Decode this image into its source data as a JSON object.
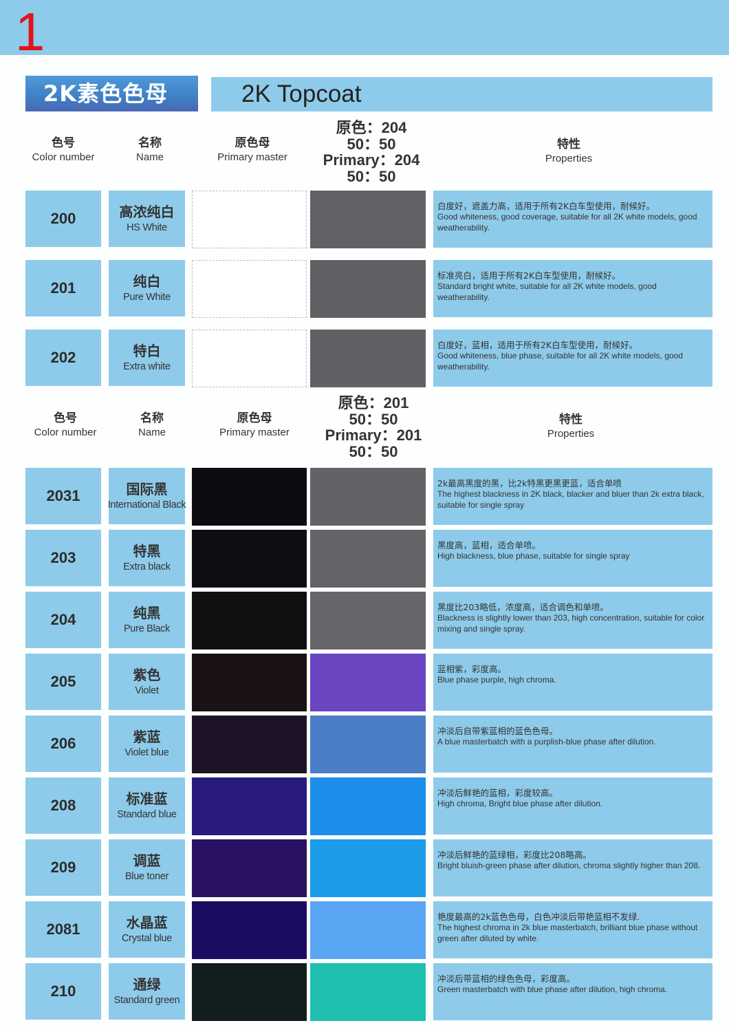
{
  "page_number": "1",
  "title": {
    "cn": "2K素色色母",
    "en": "2K Topcoat"
  },
  "headers": [
    {
      "code_cn": "色号",
      "code_en": "Color number",
      "name_cn": "名称",
      "name_en": "Name",
      "master_cn": "原色母",
      "master_en": "Primary master",
      "ratio": [
        "原色：204",
        "50：50",
        "Primary：204",
        "50：50"
      ],
      "prop_cn": "特性",
      "prop_en": "Properties"
    },
    {
      "code_cn": "色号",
      "code_en": "Color number",
      "name_cn": "名称",
      "name_en": "Name",
      "master_cn": "原色母",
      "master_en": "Primary master",
      "ratio": [
        "原色：201",
        "50：50",
        "Primary：201",
        "50：50"
      ],
      "prop_cn": "特性",
      "prop_en": "Properties"
    }
  ],
  "colors": {
    "cell_blue": "#8ecbea",
    "title_red": "#e3121b"
  },
  "rows": [
    {
      "code": "200",
      "name_cn": "高浓纯白",
      "name_en": "HS White",
      "master_color": "#ffffff",
      "mix_color": "#626165",
      "prop_cn": "白度好，遮盖力高，适用于所有2K白车型使用，耐候好。",
      "prop_en": "Good whiteness, good coverage, suitable for all 2K white models, good weatherability."
    },
    {
      "code": "201",
      "name_cn": "纯白",
      "name_en": "Pure White",
      "master_color": "#ffffff",
      "mix_color": "#605f63",
      "prop_cn": "标准亮白，适用于所有2K白车型使用，耐候好。",
      "prop_en": "Standard bright white, suitable for all 2K white models, good weatherability."
    },
    {
      "code": "202",
      "name_cn": "特白",
      "name_en": "Extra white",
      "master_color": "#ffffff",
      "mix_color": "#616064",
      "prop_cn": "白度好，蓝相，适用于所有2K白车型使用，耐候好。",
      "prop_en": "Good whiteness, blue phase, suitable for all 2K white models, good weatherability."
    },
    {
      "code": "2031",
      "name_cn": "国际黑",
      "name_en": "International Black",
      "master_color": "#0d0c10",
      "mix_color": "#636266",
      "prop_cn": "2k最高黑度的黑，比2k特黑更黑更蓝，适合单喷",
      "prop_en": "The highest blackness in 2K black, blacker and bluer than 2k extra black, suitable for single spray"
    },
    {
      "code": "203",
      "name_cn": "特黑",
      "name_en": "Extra black",
      "master_color": "#0e0d11",
      "mix_color": "#646367",
      "prop_cn": "黑度高，蓝相，适合单喷。",
      "prop_en": "High blackness, blue phase, suitable for single spray"
    },
    {
      "code": "204",
      "name_cn": "纯黑",
      "name_en": "Pure Black",
      "master_color": "#100f12",
      "mix_color": "#666569",
      "prop_cn": "黑度比203略低，浓度高，适合调色和单喷。",
      "prop_en": "Blackness is slightly lower than 203, high concentration, suitable for color mixing and single spray."
    },
    {
      "code": "205",
      "name_cn": "紫色",
      "name_en": "Violet",
      "master_color": "#1a1214",
      "mix_color": "#6a46c2",
      "prop_cn": "蓝相紫，彩度高。",
      "prop_en": "Blue phase purple, high chroma."
    },
    {
      "code": "206",
      "name_cn": "紫蓝",
      "name_en": "Violet blue",
      "master_color": "#1d1226",
      "mix_color": "#4a7dc6",
      "prop_cn": "冲淡后自带紫蓝相的蓝色色母。",
      "prop_en": "A blue masterbatch with a purplish-blue phase after dilution."
    },
    {
      "code": "208",
      "name_cn": "标准蓝",
      "name_en": "Standard blue",
      "master_color": "#291a7e",
      "mix_color": "#1d8eea",
      "prop_cn": "冲淡后鲜艳的蓝相，彩度较高。",
      "prop_en": "High chroma, Bright blue phase after dilution."
    },
    {
      "code": "209",
      "name_cn": "调蓝",
      "name_en": "Blue toner",
      "master_color": "#2a1162",
      "mix_color": "#1c9ce9",
      "prop_cn": "冲淡后鲜艳的蓝绿相，彩度比208略高。",
      "prop_en": "Bright bluish-green phase after dilution, chroma slightly higher than 208."
    },
    {
      "code": "2081",
      "name_cn": "水晶蓝",
      "name_en": "Crystal blue",
      "master_color": "#1b0c63",
      "mix_color": "#5aa5f4",
      "prop_cn": "艳度最高的2k蓝色色母，白色冲淡后带艳蓝相不发绿.",
      "prop_en": "The highest chroma in 2k blue masterbatch, brilliant blue phase without green after diluted by white."
    },
    {
      "code": "210",
      "name_cn": "通绿",
      "name_en": "Standard green",
      "master_color": "#111d1e",
      "mix_color": "#20c0b0",
      "prop_cn": "冲淡后带蓝相的绿色色母，彩度高。",
      "prop_en": "Green masterbatch with blue phase after dilution, high chroma."
    }
  ]
}
